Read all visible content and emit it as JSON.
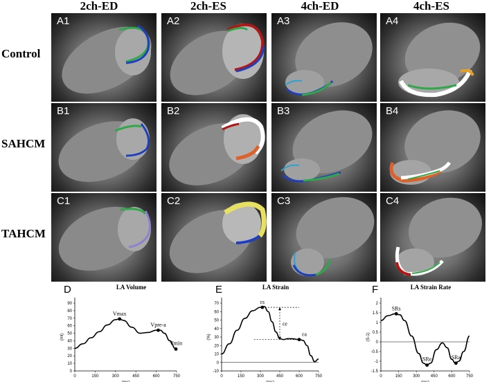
{
  "columns": [
    "2ch-ED",
    "2ch-ES",
    "4ch-ED",
    "4ch-ES"
  ],
  "rows": [
    "Control",
    "SAHCM",
    "TAHCM"
  ],
  "panels": [
    [
      "A1",
      "A2",
      "A3",
      "A4"
    ],
    [
      "B1",
      "B2",
      "B3",
      "B4"
    ],
    [
      "C1",
      "C2",
      "C3",
      "C4"
    ]
  ],
  "colors": {
    "myocardium_green": "#2fa84a",
    "myocardium_blue": "#1f3fbf",
    "myocardium_red": "#b01818",
    "myocardium_orange": "#e0602a",
    "myocardium_white": "#ffffff",
    "myocardium_yellow": "#e8e060",
    "curve": "#000000"
  },
  "chart_data": [
    {
      "letter": "D",
      "type": "line",
      "title": "LA  Volume",
      "xlabel": "(ms)",
      "ylabel": "(ml)",
      "xlim": [
        0,
        750
      ],
      "ylim": [
        0,
        90
      ],
      "xticks": [
        "0",
        "150",
        "300",
        "450",
        "600",
        "750"
      ],
      "yticks": [
        "0",
        "10",
        "20",
        "30",
        "40",
        "50",
        "60",
        "70",
        "80",
        "90"
      ],
      "x": [
        0,
        60,
        120,
        180,
        240,
        300,
        330,
        360,
        420,
        480,
        540,
        600,
        630,
        660,
        700,
        740
      ],
      "y": [
        30,
        36,
        44,
        52,
        61,
        68,
        69,
        67,
        58,
        50,
        51,
        54,
        54,
        50,
        40,
        30
      ],
      "markers": [
        {
          "label": "Vmax",
          "x": 330,
          "y": 69
        },
        {
          "label": "Vpre-a",
          "x": 615,
          "y": 54
        },
        {
          "label": "Vmin",
          "x": 745,
          "y": 29
        }
      ]
    },
    {
      "letter": "E",
      "type": "line",
      "title": "LA  Strain",
      "xlabel": "(ms)",
      "ylabel": "(%)",
      "xlim": [
        0,
        750
      ],
      "ylim": [
        -10,
        70
      ],
      "xticks": [
        "0",
        "150",
        "300",
        "450",
        "600",
        "750"
      ],
      "yticks": [
        "-10",
        "0",
        "10",
        "20",
        "30",
        "40",
        "50",
        "60",
        "70"
      ],
      "x": [
        0,
        60,
        120,
        180,
        240,
        300,
        330,
        360,
        390,
        420,
        450,
        480,
        510,
        540,
        600,
        630,
        660,
        690,
        720,
        750
      ],
      "y": [
        10,
        22,
        38,
        52,
        61,
        65,
        66,
        60,
        48,
        36,
        28,
        27,
        28,
        28,
        27,
        26,
        20,
        8,
        1,
        4
      ],
      "markers": [
        {
          "label": "εs",
          "x": 315,
          "y": 65
        },
        {
          "label": "εa",
          "x": 600,
          "y": 27
        }
      ],
      "annotations": [
        {
          "label": "εe"
        }
      ]
    },
    {
      "letter": "F",
      "type": "line",
      "title": "LA  Strain Rate",
      "xlabel": "(ms)",
      "ylabel": "(S-1)",
      "xlim": [
        0,
        750
      ],
      "ylim": [
        -1.5,
        2
      ],
      "xticks": [
        "0",
        "150",
        "300",
        "450",
        "600",
        "750"
      ],
      "yticks": [
        "-1.5",
        "-1",
        "-0.5",
        "0",
        "0.5",
        "1",
        "1.5",
        "2"
      ],
      "x": [
        0,
        60,
        120,
        160,
        200,
        260,
        320,
        360,
        390,
        420,
        470,
        520,
        560,
        600,
        630,
        660,
        700,
        750
      ],
      "y": [
        1.1,
        1.35,
        1.45,
        1.4,
        1.1,
        0.3,
        -0.6,
        -1.1,
        -1.2,
        -1.1,
        -0.4,
        -0.05,
        -0.3,
        -0.9,
        -1.1,
        -1.0,
        -0.5,
        0.3
      ],
      "markers": [
        {
          "label": "SRs",
          "x": 130,
          "y": 1.45
        },
        {
          "label": "SRe",
          "x": 390,
          "y": -1.2
        },
        {
          "label": "SRa",
          "x": 635,
          "y": -1.1
        }
      ]
    }
  ]
}
